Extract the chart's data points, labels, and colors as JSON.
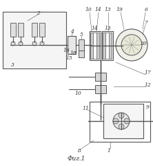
{
  "title": "Фиг.1",
  "bg_color": "#ffffff",
  "line_color": "#555555",
  "figsize": [
    2.22,
    2.4
  ],
  "dpi": 100
}
